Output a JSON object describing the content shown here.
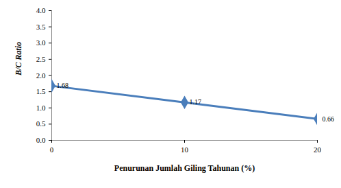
{
  "chart_data": {
    "type": "line",
    "x_label": "Penurunan Jumlah Giling Tahunan (%)",
    "y_label": "B/C Ratio",
    "x": [
      0,
      10,
      20
    ],
    "series": [
      {
        "name": "B/C Ratio",
        "color": "#4a7ebb",
        "values": [
          1.68,
          1.17,
          0.66
        ],
        "marker": "diamond"
      }
    ],
    "xlim": [
      0,
      20
    ],
    "xticks": [
      0,
      10,
      20
    ],
    "ylim": [
      0,
      4
    ],
    "yticks": [
      {
        "value": 0,
        "label": "0.0"
      },
      {
        "value": 0.5,
        "label": "0.5"
      },
      {
        "value": 1,
        "label": "1.0"
      },
      {
        "value": 1.5,
        "label": "1.5"
      },
      {
        "value": 2,
        "label": "2.0"
      },
      {
        "value": 2.5,
        "label": "2.5"
      },
      {
        "value": 3,
        "label": "3.0"
      },
      {
        "value": 3.5,
        "label": "3.5"
      },
      {
        "value": 4,
        "label": "4.0"
      }
    ],
    "grid": false,
    "data_labels": true
  }
}
